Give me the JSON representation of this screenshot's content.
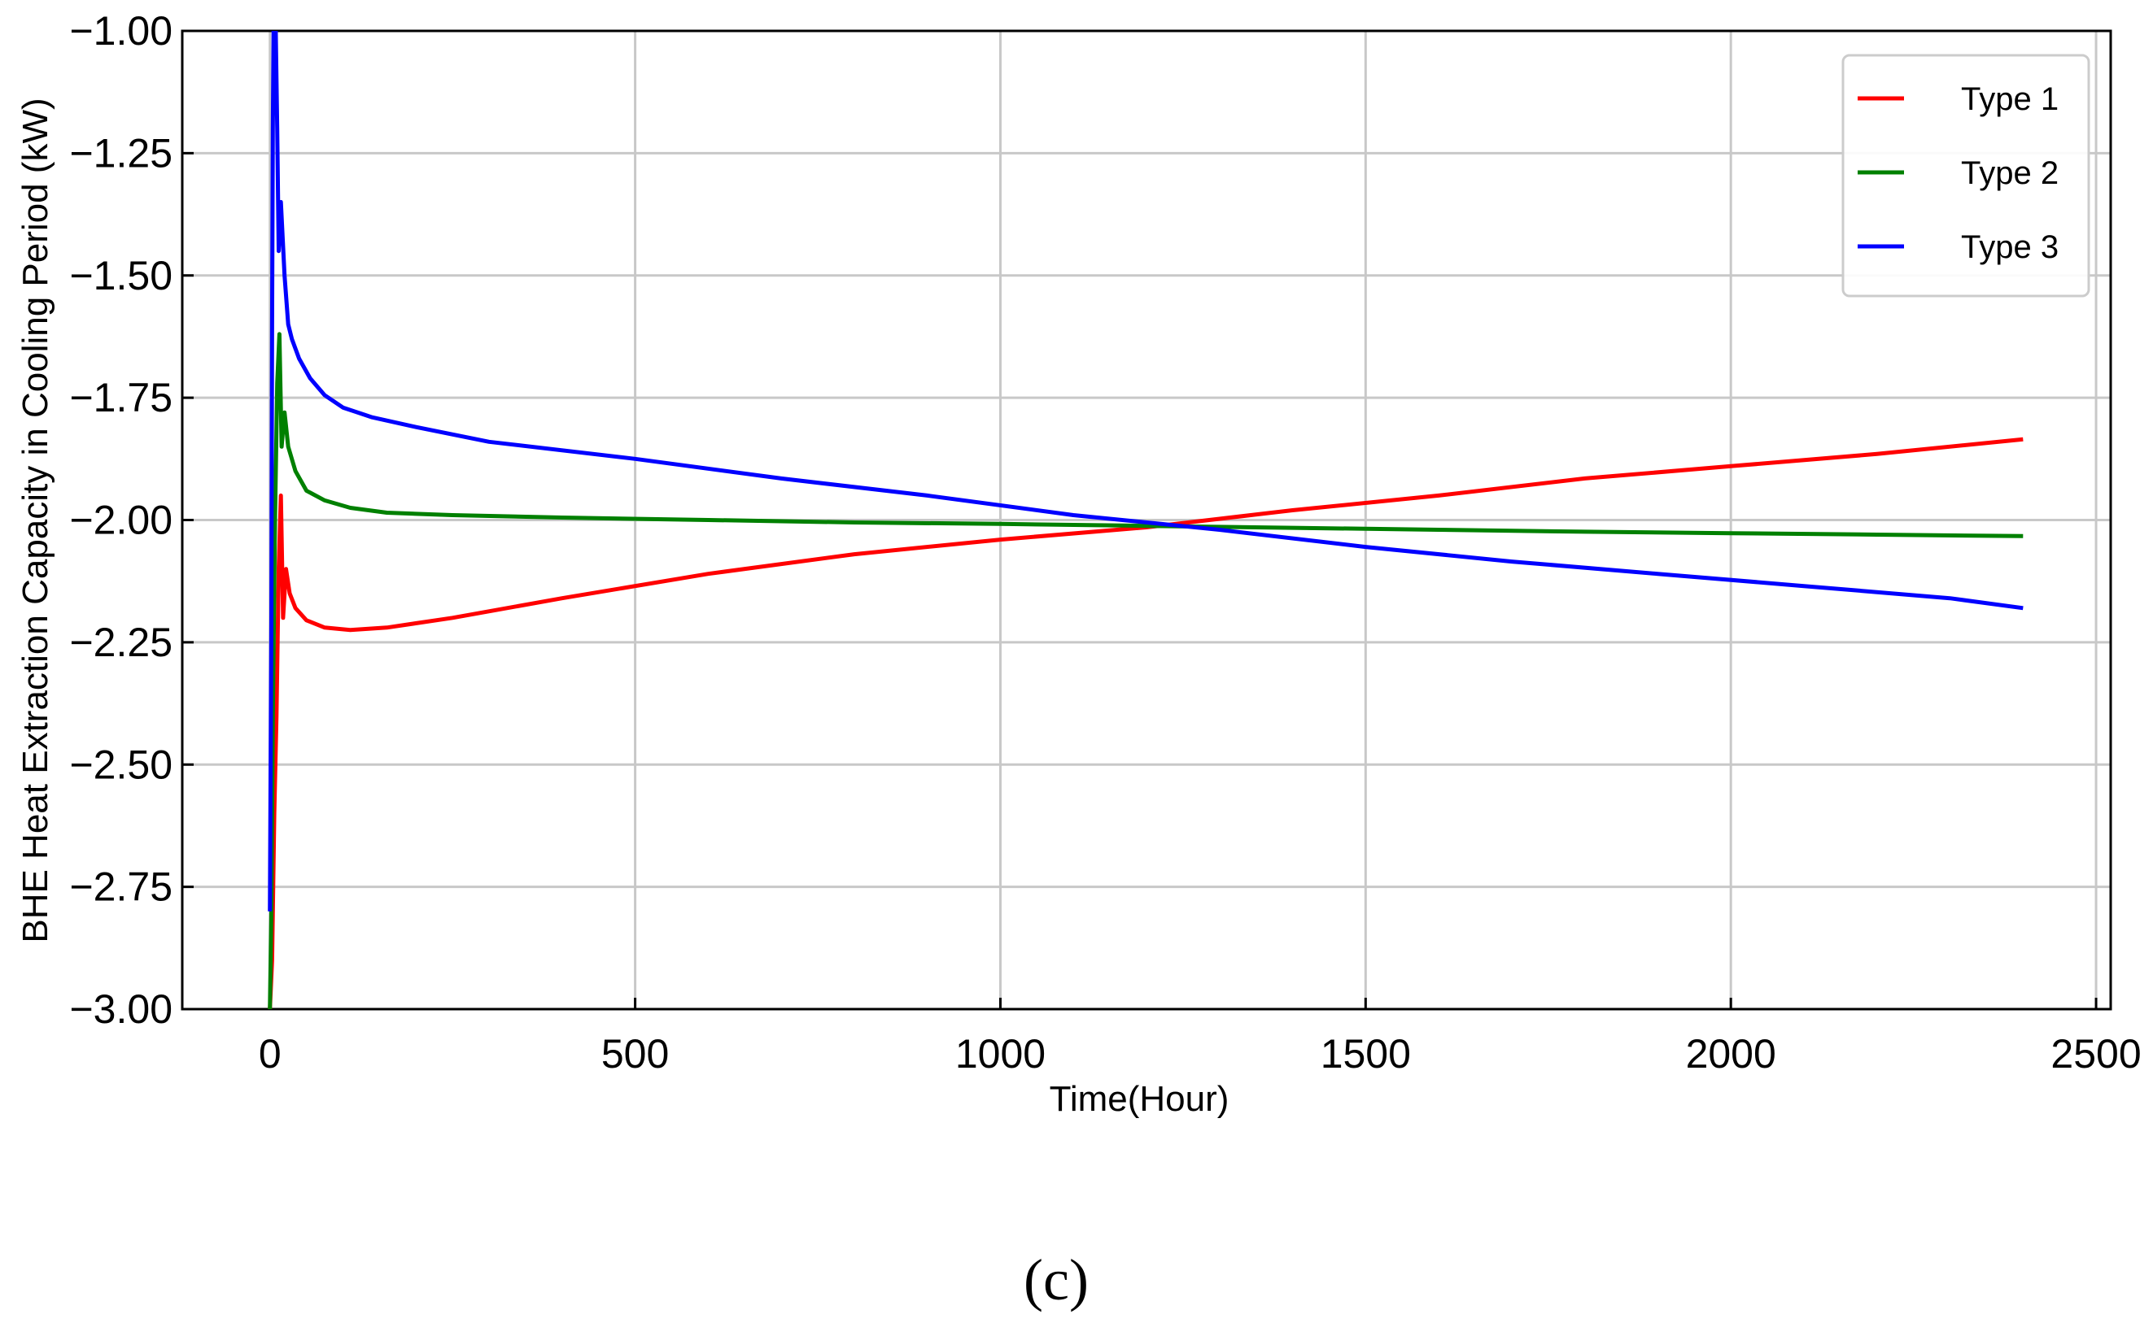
{
  "chart_data": {
    "type": "line",
    "xlabel": "Time(Hour)",
    "ylabel": "BHE Heat Extraction Capacity in Cooling Period (kW)",
    "xlim": [
      -120,
      2520
    ],
    "ylim": [
      -3.0,
      -1.0
    ],
    "xticks": [
      0,
      500,
      1000,
      1500,
      2000,
      2500
    ],
    "yticks": [
      -3.0,
      -2.75,
      -2.5,
      -2.25,
      -2.0,
      -1.75,
      -1.5,
      -1.25,
      -1.0
    ],
    "x_tick_labels": [
      "0",
      "500",
      "1000",
      "1500",
      "2000",
      "2500"
    ],
    "y_tick_labels": [
      "−3.00",
      "−2.75",
      "−2.50",
      "−2.25",
      "−2.00",
      "−1.75",
      "−1.50",
      "−1.25",
      "−1.00"
    ],
    "grid": true,
    "legend_position": "top-right",
    "series": [
      {
        "name": "Type 1",
        "color": "#ff0000",
        "points": [
          [
            0,
            -3.0
          ],
          [
            3,
            -2.9
          ],
          [
            6,
            -2.6
          ],
          [
            9,
            -2.4
          ],
          [
            12,
            -2.1
          ],
          [
            15,
            -1.95
          ],
          [
            18,
            -2.2
          ],
          [
            22,
            -2.1
          ],
          [
            27,
            -2.15
          ],
          [
            35,
            -2.18
          ],
          [
            50,
            -2.205
          ],
          [
            75,
            -2.22
          ],
          [
            110,
            -2.225
          ],
          [
            160,
            -2.22
          ],
          [
            250,
            -2.2
          ],
          [
            400,
            -2.16
          ],
          [
            600,
            -2.11
          ],
          [
            800,
            -2.07
          ],
          [
            1000,
            -2.04
          ],
          [
            1200,
            -2.015
          ],
          [
            1400,
            -1.98
          ],
          [
            1600,
            -1.95
          ],
          [
            1800,
            -1.915
          ],
          [
            2000,
            -1.89
          ],
          [
            2200,
            -1.865
          ],
          [
            2400,
            -1.835
          ]
        ]
      },
      {
        "name": "Type 2",
        "color": "#008000",
        "points": [
          [
            0,
            -3.0
          ],
          [
            2,
            -2.8
          ],
          [
            4,
            -2.4
          ],
          [
            7,
            -2.0
          ],
          [
            10,
            -1.72
          ],
          [
            13,
            -1.62
          ],
          [
            16,
            -1.85
          ],
          [
            20,
            -1.78
          ],
          [
            25,
            -1.85
          ],
          [
            35,
            -1.9
          ],
          [
            50,
            -1.94
          ],
          [
            75,
            -1.96
          ],
          [
            110,
            -1.975
          ],
          [
            160,
            -1.985
          ],
          [
            250,
            -1.99
          ],
          [
            400,
            -1.995
          ],
          [
            600,
            -2.0
          ],
          [
            800,
            -2.005
          ],
          [
            1000,
            -2.008
          ],
          [
            1200,
            -2.012
          ],
          [
            1400,
            -2.016
          ],
          [
            1600,
            -2.02
          ],
          [
            1800,
            -2.024
          ],
          [
            2000,
            -2.027
          ],
          [
            2200,
            -2.03
          ],
          [
            2400,
            -2.033
          ]
        ]
      },
      {
        "name": "Type 3",
        "color": "#0000ff",
        "points": [
          [
            0,
            -2.8
          ],
          [
            2,
            -2.2
          ],
          [
            3,
            -1.6
          ],
          [
            4,
            -1.2
          ],
          [
            5,
            -1.0
          ],
          [
            8,
            -1.0
          ],
          [
            10,
            -1.2
          ],
          [
            12,
            -1.45
          ],
          [
            15,
            -1.35
          ],
          [
            20,
            -1.5
          ],
          [
            25,
            -1.6
          ],
          [
            30,
            -1.63
          ],
          [
            40,
            -1.67
          ],
          [
            55,
            -1.71
          ],
          [
            75,
            -1.745
          ],
          [
            100,
            -1.77
          ],
          [
            140,
            -1.79
          ],
          [
            200,
            -1.81
          ],
          [
            300,
            -1.84
          ],
          [
            500,
            -1.875
          ],
          [
            700,
            -1.915
          ],
          [
            900,
            -1.95
          ],
          [
            1100,
            -1.99
          ],
          [
            1300,
            -2.02
          ],
          [
            1500,
            -2.055
          ],
          [
            1700,
            -2.085
          ],
          [
            1900,
            -2.11
          ],
          [
            2100,
            -2.135
          ],
          [
            2300,
            -2.16
          ],
          [
            2400,
            -2.18
          ]
        ]
      }
    ],
    "caption": "(c)"
  }
}
